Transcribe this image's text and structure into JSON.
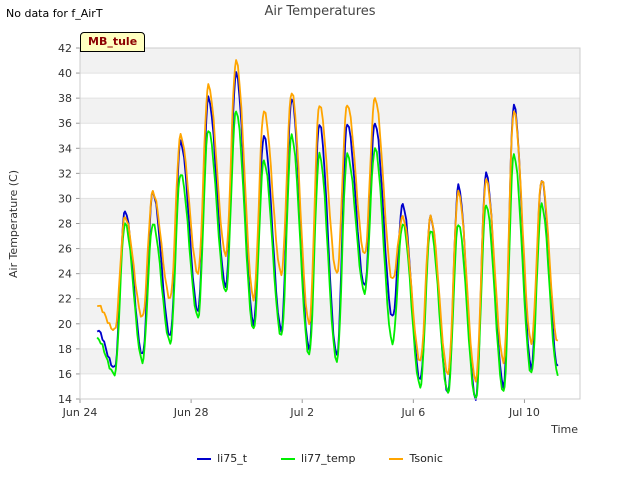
{
  "note": "No data for f_AirT",
  "badge": "MB_tule",
  "colors": {
    "li75_t": "#0000cc",
    "li77_temp": "#00ee00",
    "Tsonic": "#ffa500"
  },
  "chart_data": {
    "type": "line",
    "title": "Air Temperatures",
    "xlabel": "Time",
    "ylabel": "Air Temperature (C)",
    "xlim": [
      "2023-06-24",
      "2023-07-12"
    ],
    "x_ticks": [
      "Jun 24",
      "Jun 28",
      "Jul 2",
      "Jul 6",
      "Jul 10"
    ],
    "ylim": [
      14,
      42
    ],
    "y_ticks": [
      14,
      16,
      18,
      20,
      22,
      24,
      26,
      28,
      30,
      32,
      34,
      36,
      38,
      40,
      42
    ],
    "grid": true,
    "legend_position": "bottom",
    "series": [
      {
        "name": "li75_t",
        "peaks": [
          19.5,
          29,
          30.5,
          34.5,
          38,
          40,
          35,
          38,
          36,
          36,
          36,
          29.5,
          28.5,
          31,
          32,
          37.5,
          31.5
        ],
        "troughs": [
          16.5,
          16.5,
          17.5,
          19,
          21,
          23,
          20,
          19.5,
          18,
          17.5,
          23,
          20.5,
          15.5,
          14.5,
          14,
          15,
          16.5
        ]
      },
      {
        "name": "li77_temp",
        "peaks": [
          18.8,
          28,
          28,
          32,
          35.5,
          37,
          33,
          35,
          33.5,
          33.5,
          34,
          28,
          27.5,
          28,
          29.5,
          33.5,
          29.5
        ],
        "troughs": [
          16,
          16,
          17,
          18.5,
          20.5,
          22.5,
          19.5,
          19,
          17.5,
          17,
          22.5,
          18.5,
          15,
          14.5,
          14,
          14.5,
          16
        ]
      },
      {
        "name": "Tsonic",
        "peaks": [
          21.5,
          28.5,
          30.5,
          35,
          39,
          41,
          37,
          38.5,
          37.5,
          37.5,
          38,
          28.5,
          28.5,
          30.5,
          31.5,
          37,
          31.5
        ],
        "troughs": [
          18.5,
          19.5,
          20.5,
          22,
          24,
          25.5,
          22,
          24,
          20,
          24,
          25.5,
          23.5,
          17,
          16,
          15.5,
          17,
          18.5
        ]
      }
    ]
  }
}
